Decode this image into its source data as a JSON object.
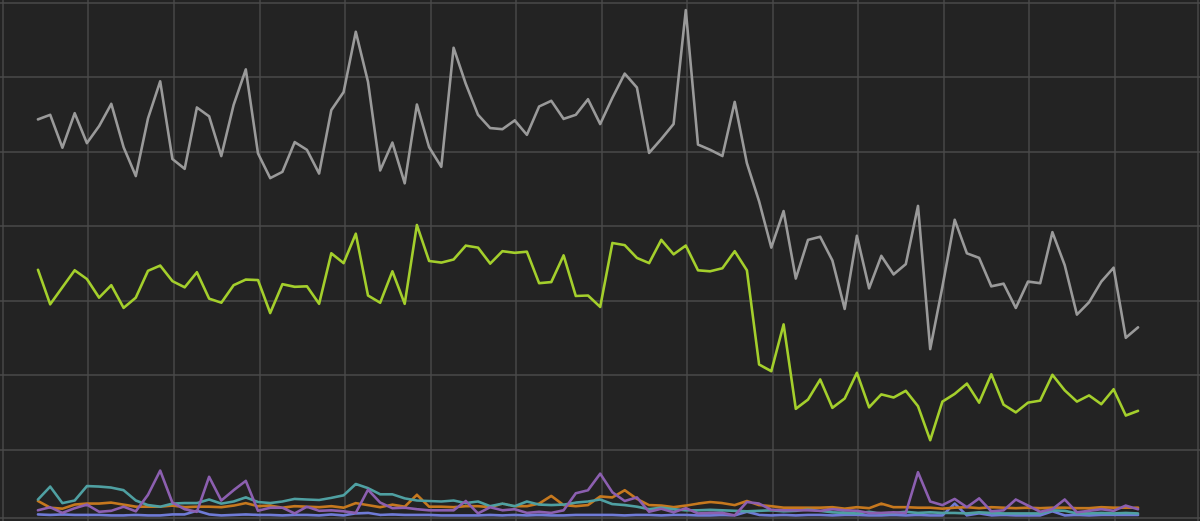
{
  "chart_data": {
    "type": "line",
    "title": "",
    "xlabel": "",
    "ylabel": "",
    "grid": true,
    "legend": "none",
    "background": "#232323",
    "grid_color": "#4a4a4a",
    "xlim": [
      0,
      91
    ],
    "ylim": [
      0,
      100
    ],
    "series": [
      {
        "color": "#9a9a9a",
        "values": [
          77.4,
          78.3,
          71.9,
          78.6,
          72.8,
          76.1,
          80.4,
          72.0,
          66.4,
          77.6,
          84.8,
          69.7,
          67.8,
          79.7,
          78.0,
          70.3,
          80.2,
          87.1,
          70.8,
          66.0,
          67.2,
          73.0,
          71.5,
          66.9,
          79.2,
          82.7,
          94.4,
          84.7,
          67.5,
          72.9,
          65.0,
          80.3,
          72.0,
          68.2,
          91.3,
          84.3,
          78.3,
          75.7,
          75.5,
          77.2,
          74.4,
          79.9,
          81.0,
          77.5,
          78.3,
          81.3,
          76.5,
          81.6,
          86.3,
          83.6,
          70.9,
          73.6,
          76.5,
          98.6,
          72.5,
          71.5,
          70.3,
          80.8,
          68.9,
          61.5,
          52.5,
          59.6,
          46.5,
          54.0,
          54.6,
          50.0,
          40.6,
          54.8,
          44.6,
          50.9,
          47.3,
          49.3,
          60.6,
          32.8,
          44.9,
          57.9,
          51.4,
          50.5,
          45.0,
          45.5,
          40.8,
          45.9,
          45.6,
          55.5,
          49.1,
          39.5,
          41.9,
          45.9,
          48.6,
          35.0,
          37.0
        ]
      },
      {
        "color": "#a4cf2c",
        "values": [
          48.2,
          41.5,
          44.8,
          48.1,
          46.4,
          42.8,
          45.2,
          40.8,
          42.8,
          48.0,
          49.0,
          46.0,
          44.8,
          47.7,
          42.6,
          41.8,
          45.2,
          46.3,
          46.2,
          39.8,
          45.4,
          44.9,
          45.0,
          41.6,
          51.4,
          49.5,
          55.2,
          43.2,
          41.8,
          47.9,
          41.6,
          56.9,
          49.9,
          49.6,
          50.2,
          52.9,
          52.5,
          49.4,
          51.8,
          51.5,
          51.7,
          45.6,
          45.8,
          51.0,
          43.1,
          43.2,
          41.0,
          53.4,
          53.0,
          50.5,
          49.5,
          54.0,
          51.2,
          52.9,
          48.1,
          47.9,
          48.5,
          51.8,
          48.1,
          29.8,
          28.5,
          37.6,
          21.2,
          23.0,
          26.9,
          21.4,
          23.2,
          28.2,
          21.5,
          24.0,
          23.4,
          24.7,
          21.7,
          15.1,
          22.6,
          24.1,
          26.1,
          22.4,
          27.9,
          22.0,
          20.5,
          22.4,
          22.8,
          27.8,
          24.8,
          22.6,
          23.8,
          22.1,
          25.0,
          19.9,
          20.8
        ]
      },
      {
        "color": "#8c5fb0",
        "values": [
          1.5,
          2.1,
          1.0,
          1.9,
          2.6,
          1.2,
          1.4,
          2.2,
          1.3,
          4.5,
          9.2,
          3.0,
          1.7,
          1.2,
          8.0,
          3.4,
          5.4,
          7.2,
          1.4,
          2.0,
          2.0,
          0.9,
          2.2,
          1.4,
          1.5,
          1.3,
          1.0,
          5.5,
          3.0,
          1.9,
          2.0,
          1.7,
          1.5,
          1.5,
          1.5,
          3.3,
          0.9,
          2.1,
          1.5,
          1.7,
          1.0,
          1.2,
          1.0,
          1.5,
          4.8,
          5.4,
          8.6,
          5.0,
          3.3,
          4.0,
          1.2,
          1.8,
          1.1,
          1.9,
          0.9,
          1.0,
          1.0,
          0.5,
          3.1,
          2.8,
          1.6,
          1.5,
          1.5,
          1.5,
          1.4,
          1.7,
          1.5,
          1.4,
          1.0,
          1.0,
          1.1,
          1.0,
          8.9,
          3.2,
          2.5,
          3.7,
          2.1,
          3.8,
          1.3,
          1.5,
          3.6,
          2.4,
          1.2,
          1.7,
          3.6,
          1.1,
          1.4,
          1.7,
          1.4,
          2.4,
          1.7
        ]
      },
      {
        "color": "#4fa0a2",
        "values": [
          3.6,
          6.1,
          2.9,
          3.4,
          6.2,
          6.1,
          5.9,
          5.4,
          3.4,
          2.5,
          2.2,
          2.8,
          2.9,
          2.9,
          3.6,
          2.8,
          3.2,
          4.0,
          3.1,
          2.9,
          3.2,
          3.7,
          3.6,
          3.5,
          3.9,
          4.4,
          6.6,
          5.8,
          4.6,
          4.6,
          3.8,
          3.4,
          3.3,
          3.2,
          3.4,
          2.9,
          3.2,
          2.3,
          2.8,
          2.3,
          3.2,
          2.6,
          2.5,
          2.6,
          3.0,
          3.2,
          3.6,
          2.7,
          2.5,
          2.2,
          1.7,
          2.0,
          1.7,
          1.5,
          1.5,
          1.6,
          1.5,
          1.4,
          1.3,
          1.4,
          1.5,
          1.3,
          1.4,
          1.6,
          1.4,
          1.1,
          1.0,
          0.9,
          1.2,
          0.9,
          1.0,
          1.2,
          1.0,
          1.1,
          1.0,
          1.0,
          0.9,
          1.1,
          1.0,
          0.9,
          0.9,
          0.9,
          0.9,
          1.5,
          1.4,
          0.9,
          0.9,
          1.0,
          0.9,
          1.0,
          0.9
        ]
      },
      {
        "color": "#c6781e",
        "values": [
          3.3,
          2.0,
          1.8,
          2.6,
          2.8,
          2.8,
          3.0,
          2.6,
          2.2,
          2.2,
          2.2,
          2.4,
          2.1,
          2.2,
          2.2,
          2.1,
          2.4,
          2.9,
          2.3,
          2.4,
          2.0,
          2.3,
          2.2,
          2.1,
          2.3,
          2.0,
          2.9,
          2.5,
          2.1,
          2.6,
          2.2,
          4.5,
          2.2,
          2.2,
          2.1,
          2.3,
          2.3,
          2.1,
          2.8,
          2.3,
          2.3,
          2.8,
          4.3,
          2.5,
          2.3,
          2.5,
          4.2,
          4.0,
          5.4,
          3.7,
          2.5,
          2.4,
          2.1,
          2.4,
          2.8,
          3.1,
          2.9,
          2.5,
          3.3,
          2.5,
          2.3,
          2.0,
          2.0,
          2.0,
          2.0,
          2.1,
          1.8,
          2.1,
          1.9,
          2.8,
          2.1,
          2.1,
          2.0,
          2.0,
          1.8,
          2.0,
          2.1,
          1.9,
          2.1,
          2.0,
          1.9,
          2.0,
          1.9,
          2.0,
          2.0,
          1.9,
          1.9,
          2.1,
          2.0,
          2.0,
          2.0
        ]
      },
      {
        "color": "#6f7bd6",
        "values": [
          0.7,
          0.6,
          0.7,
          0.6,
          0.6,
          0.6,
          0.5,
          0.5,
          0.6,
          0.5,
          0.5,
          0.7,
          0.7,
          1.4,
          0.7,
          0.5,
          0.6,
          0.7,
          0.6,
          0.6,
          0.5,
          0.6,
          0.6,
          0.5,
          0.7,
          0.5,
          0.9,
          1.0,
          0.6,
          0.7,
          0.6,
          0.6,
          0.6,
          0.5,
          0.5,
          0.5,
          0.5,
          0.6,
          0.5,
          0.6,
          0.5,
          0.6,
          0.5,
          0.5,
          0.6,
          0.6,
          0.6,
          0.6,
          0.5,
          0.6,
          0.6,
          0.5,
          0.6,
          0.6,
          0.5,
          0.5,
          0.6,
          0.5,
          1.2,
          0.6,
          0.5,
          0.6,
          0.5,
          0.6,
          0.6,
          0.5,
          0.6,
          0.6,
          0.5,
          0.5,
          0.6,
          0.5,
          0.6,
          0.5,
          0.5,
          2.8,
          0.5,
          0.9,
          0.5,
          0.6,
          0.5,
          0.5,
          0.5,
          1.3,
          0.5,
          0.6,
          0.5,
          0.6,
          0.6,
          0.6,
          0.6
        ]
      }
    ]
  }
}
